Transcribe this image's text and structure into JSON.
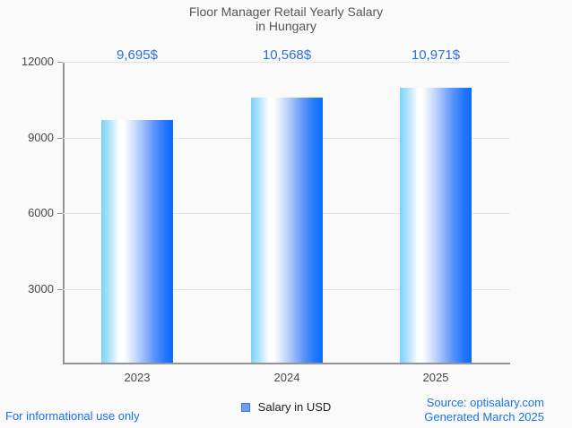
{
  "title": {
    "line1": "Floor Manager Retail Yearly Salary",
    "line2": "in Hungary"
  },
  "chart_data": {
    "type": "bar",
    "title": "Floor Manager Retail Yearly Salary in Hungary",
    "categories": [
      "2023",
      "2024",
      "2025"
    ],
    "series": [
      {
        "name": "Salary in USD",
        "values": [
          9695,
          10568,
          10971
        ],
        "value_labels": [
          "9,695$",
          "10,568$",
          "10,971$"
        ]
      }
    ],
    "xlabel": "",
    "ylabel": "",
    "ylim": [
      0,
      12000
    ],
    "yticks": [
      3000,
      6000,
      9000,
      12000
    ],
    "ytick_labels": [
      "3000",
      "6000",
      "9000",
      "12000"
    ],
    "grid": true,
    "legend_position": "bottom"
  },
  "legend": {
    "label": "Salary in USD"
  },
  "footer": {
    "left": "For informational use only",
    "source": "Source: optisalary.com",
    "generated": "Generated March 2025"
  },
  "colors": {
    "background": "#fafafa",
    "title_text": "#555555",
    "value_label_blue": "#2a6fe0",
    "footer_blue": "#1a73e8",
    "axis_gray": "#949494",
    "gridline_gray": "#e4e4e4",
    "tick_text": "#484848",
    "legend_swatch_fill": "#6d9eeb",
    "legend_swatch_border": "#3c78d8",
    "bar_gradient_left": "#7bd2fb",
    "bar_gradient_highlight": "#ffffff",
    "bar_gradient_right": "#0b6afd"
  }
}
